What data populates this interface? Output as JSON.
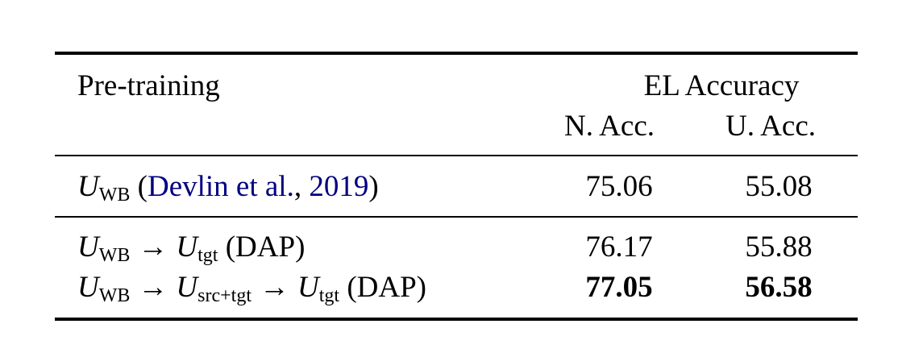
{
  "table": {
    "header": {
      "pretraining": "Pre-training",
      "group": "EL Accuracy",
      "col_n": "N. Acc.",
      "col_u": "U. Acc."
    },
    "rows": [
      {
        "model_symbol": "U",
        "model_sub": "WB",
        "open_paren": "(",
        "citation_authors": "Devlin et al.",
        "citation_sep": ", ",
        "citation_year": "2019",
        "close_paren": ")",
        "n_acc": "75.06",
        "u_acc": "55.08"
      },
      {
        "model_symbol": "U",
        "model_sub": "WB",
        "arrow": "→",
        "target_symbol": "U",
        "target_sub": "tgt",
        "suffix": "(DAP)",
        "n_acc": "76.17",
        "u_acc": "55.88"
      },
      {
        "model_symbol": "U",
        "model_sub": "WB",
        "arrow": "→",
        "mid_symbol": "U",
        "mid_sub": "src+tgt",
        "arrow2": "→",
        "target_symbol": "U",
        "target_sub": "tgt",
        "suffix": "(DAP)",
        "n_acc": "77.05",
        "u_acc": "56.58"
      }
    ]
  }
}
